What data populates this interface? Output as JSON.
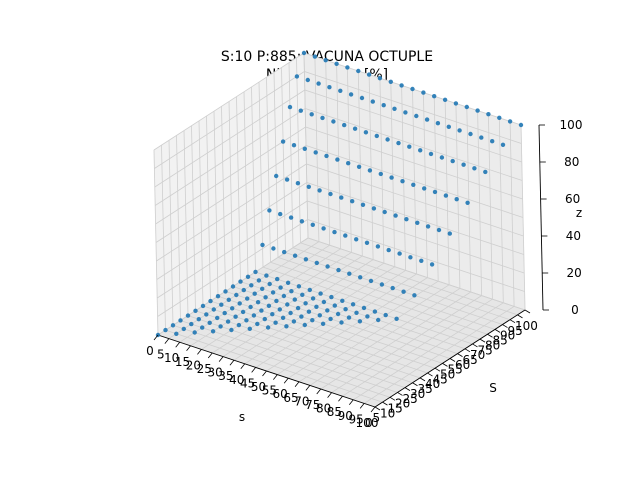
{
  "chart_data": {
    "type": "scatter3d",
    "title": "S:10 P:885: VACUNA OCTUPLE",
    "subtitle": "Nivel servicio [%]",
    "xlabel": "s",
    "ylabel": "S",
    "zlabel": "z",
    "xlim": [
      0,
      100
    ],
    "ylim": [
      0,
      100
    ],
    "zlim": [
      0,
      100
    ],
    "x_ticks": [
      "0",
      "5",
      "10",
      "15",
      "20",
      "25",
      "30",
      "35",
      "40",
      "45",
      "50",
      "55",
      "60",
      "65",
      "70",
      "75",
      "80",
      "85",
      "90",
      "95",
      "100"
    ],
    "y_ticks": [
      "0",
      "5",
      "10",
      "15",
      "20",
      "25",
      "30",
      "35",
      "40",
      "45",
      "50",
      "55",
      "60",
      "65",
      "70",
      "75",
      "80",
      "85",
      "90",
      "95",
      "100"
    ],
    "z_ticks": [
      "0",
      "20",
      "40",
      "60",
      "80",
      "100"
    ],
    "grid": true,
    "marker_color": "#1f77b4",
    "grid_rule": "points exist for s and S in steps of 5 where s <= S; z is about 0 for S below 70 and rises toward 100 near S = 100",
    "z_by_S": [
      {
        "S": 70,
        "z": 12
      },
      {
        "S": 75,
        "z": 28
      },
      {
        "S": 80,
        "z": 44
      },
      {
        "S": 85,
        "z": 60
      },
      {
        "S": 90,
        "z": 76
      },
      {
        "S": 95,
        "z": 90
      },
      {
        "S": 100,
        "z": 100
      }
    ]
  }
}
